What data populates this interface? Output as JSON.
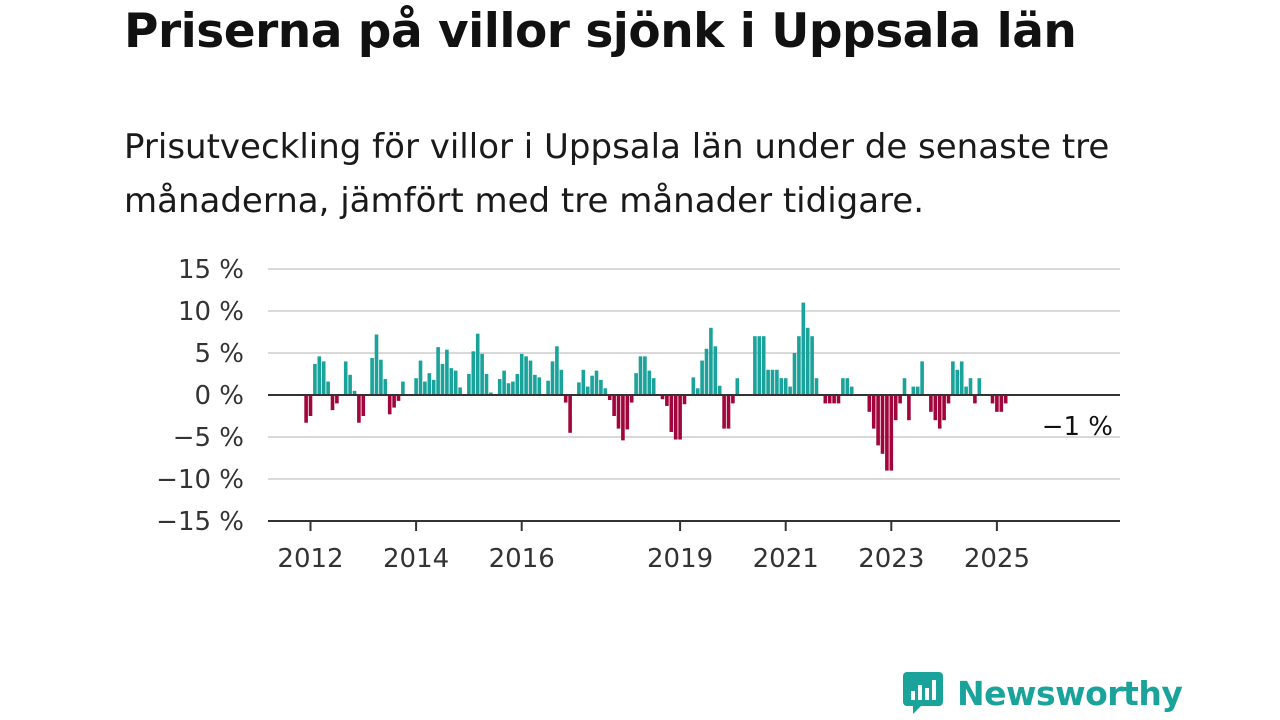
{
  "title": "Priserna på villor sjönk i Uppsala län",
  "subtitle": "Prisutveckling för villor i Uppsala län under de senaste tre månaderna, jämfört med tre månader tidigare.",
  "brand": "Newsworthy",
  "colors": {
    "positive": "#1aa39b",
    "negative": "#a0063c",
    "grid": "#d9d9d9",
    "axis": "#333333",
    "brand": "#1aa39b"
  },
  "chart_data": {
    "type": "bar",
    "x_start": "2011-12",
    "x_step": "month",
    "ylim": [
      -15,
      15
    ],
    "y_ticks": [
      15,
      10,
      5,
      0,
      -5,
      -10,
      -15
    ],
    "y_tick_labels": [
      "15 %",
      "10 %",
      "5 %",
      "0 %",
      "−5 %",
      "−10 %",
      "−15 %"
    ],
    "x_tick_labels": [
      "2012",
      "2014",
      "2016",
      "2019",
      "2021",
      "2023",
      "2025"
    ],
    "end_label": "−1 %",
    "values": [
      -3.3,
      -2.5,
      3.7,
      4.6,
      4.0,
      1.6,
      -1.8,
      -1.0,
      0,
      4.0,
      2.4,
      0.5,
      -3.3,
      -2.5,
      0,
      4.4,
      7.2,
      4.2,
      1.9,
      -2.3,
      -1.5,
      -0.7,
      1.6,
      0,
      0,
      2.0,
      4.1,
      1.6,
      2.6,
      1.8,
      5.7,
      3.7,
      5.4,
      3.2,
      2.9,
      0.9,
      0,
      2.5,
      5.2,
      7.3,
      4.9,
      2.5,
      0.3,
      0,
      1.9,
      2.9,
      1.4,
      1.6,
      2.5,
      4.9,
      4.6,
      4.1,
      2.4,
      2.1,
      0,
      1.7,
      4.0,
      5.8,
      3.0,
      -0.9,
      -4.5,
      0,
      1.5,
      3.0,
      1.0,
      2.3,
      2.9,
      1.8,
      0.8,
      -0.6,
      -2.5,
      -4.0,
      -5.4,
      -4.1,
      -0.9,
      2.6,
      4.6,
      4.6,
      2.9,
      2.0,
      0,
      -0.5,
      -1.3,
      -4.4,
      -5.3,
      -5.3,
      -1.1,
      0,
      2.1,
      0.8,
      4.1,
      5.5,
      8.0,
      5.8,
      1.1,
      -4.0,
      -4.0,
      -1.0,
      2.0,
      0,
      0,
      0,
      7.0,
      7.0,
      7.0,
      3.0,
      3.0,
      3.0,
      2.0,
      2.0,
      1.0,
      5.0,
      7.0,
      11.0,
      8.0,
      7.0,
      2.0,
      0,
      -1.0,
      -1.0,
      -1.0,
      -1.0,
      2.0,
      2.0,
      1.0,
      0,
      0,
      0,
      -2.0,
      -4.0,
      -6.0,
      -7.0,
      -9.0,
      -9.0,
      -3.0,
      -1.0,
      2.0,
      -3.0,
      1.0,
      1.0,
      4.0,
      0,
      -2.0,
      -3.0,
      -4.0,
      -3.0,
      -1.0,
      4.0,
      3.0,
      4.0,
      1.0,
      2.0,
      -1.0,
      2.0,
      0,
      0,
      -1.0,
      -2.0,
      -2.0,
      -1.0
    ]
  }
}
